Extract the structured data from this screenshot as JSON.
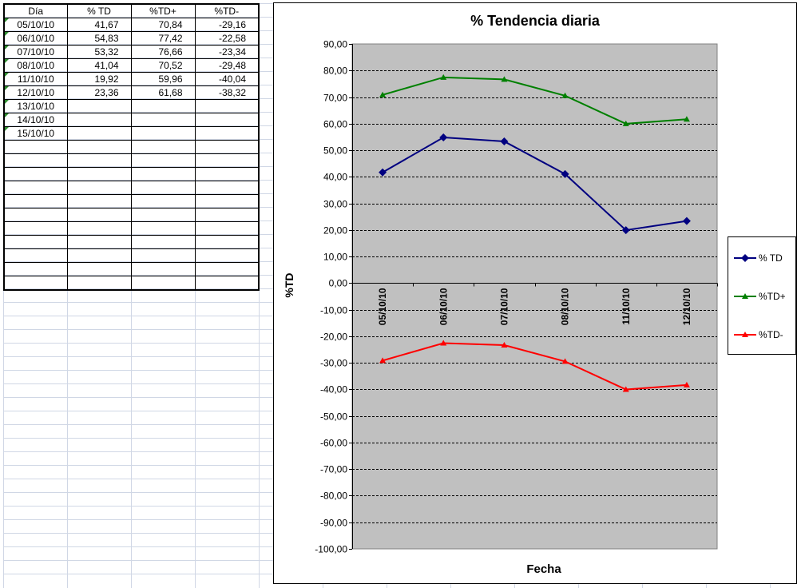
{
  "sheet": {
    "headers": [
      "Día",
      "% TD",
      "%TD+",
      "%TD-"
    ],
    "rows": [
      {
        "date": "05/10/10",
        "td": "41,67",
        "tdp": "70,84",
        "tdm": "-29,16"
      },
      {
        "date": "06/10/10",
        "td": "54,83",
        "tdp": "77,42",
        "tdm": "-22,58"
      },
      {
        "date": "07/10/10",
        "td": "53,32",
        "tdp": "76,66",
        "tdm": "-23,34"
      },
      {
        "date": "08/10/10",
        "td": "41,04",
        "tdp": "70,52",
        "tdm": "-29,48"
      },
      {
        "date": "11/10/10",
        "td": "19,92",
        "tdp": "59,96",
        "tdm": "-40,04"
      },
      {
        "date": "12/10/10",
        "td": "23,36",
        "tdp": "61,68",
        "tdm": "-38,32"
      },
      {
        "date": "13/10/10",
        "td": "",
        "tdp": "",
        "tdm": ""
      },
      {
        "date": "14/10/10",
        "td": "",
        "tdp": "",
        "tdm": ""
      },
      {
        "date": "15/10/10",
        "td": "",
        "tdp": "",
        "tdm": ""
      },
      {
        "date": "",
        "td": "",
        "tdp": "",
        "tdm": ""
      },
      {
        "date": "",
        "td": "",
        "tdp": "",
        "tdm": ""
      },
      {
        "date": "",
        "td": "",
        "tdp": "",
        "tdm": ""
      },
      {
        "date": "",
        "td": "",
        "tdp": "",
        "tdm": ""
      },
      {
        "date": "",
        "td": "",
        "tdp": "",
        "tdm": ""
      },
      {
        "date": "",
        "td": "",
        "tdp": "",
        "tdm": ""
      },
      {
        "date": "",
        "td": "",
        "tdp": "",
        "tdm": ""
      },
      {
        "date": "",
        "td": "",
        "tdp": "",
        "tdm": ""
      },
      {
        "date": "",
        "td": "",
        "tdp": "",
        "tdm": ""
      },
      {
        "date": "",
        "td": "",
        "tdp": "",
        "tdm": ""
      },
      {
        "date": "",
        "td": "",
        "tdp": "",
        "tdm": ""
      }
    ]
  },
  "chart_data": {
    "type": "line",
    "title": "% Tendencia diaria",
    "xlabel": "Fecha",
    "ylabel": "%TD",
    "categories": [
      "05/10/10",
      "06/10/10",
      "07/10/10",
      "08/10/10",
      "11/10/10",
      "12/10/10"
    ],
    "ylim": [
      -100,
      90
    ],
    "ystep": 10,
    "yticks": [
      "90,00",
      "80,00",
      "70,00",
      "60,00",
      "50,00",
      "40,00",
      "30,00",
      "20,00",
      "10,00",
      "0,00",
      "-10,00",
      "-20,00",
      "-30,00",
      "-40,00",
      "-50,00",
      "-60,00",
      "-70,00",
      "-80,00",
      "-90,00",
      "-100,00"
    ],
    "plot_background": "#c0c0c0",
    "grid": "dashed horizontal",
    "legend_position": "right",
    "series": [
      {
        "name": "% TD",
        "color": "#000080",
        "marker": "diamond",
        "values": [
          41.67,
          54.83,
          53.32,
          41.04,
          19.92,
          23.36
        ]
      },
      {
        "name": "%TD+",
        "color": "#008000",
        "marker": "triangle",
        "values": [
          70.84,
          77.42,
          76.66,
          70.52,
          59.96,
          61.68
        ]
      },
      {
        "name": "%TD-",
        "color": "#ff0000",
        "marker": "triangle",
        "values": [
          -29.16,
          -22.58,
          -23.34,
          -29.48,
          -40.04,
          -38.32
        ]
      }
    ]
  }
}
